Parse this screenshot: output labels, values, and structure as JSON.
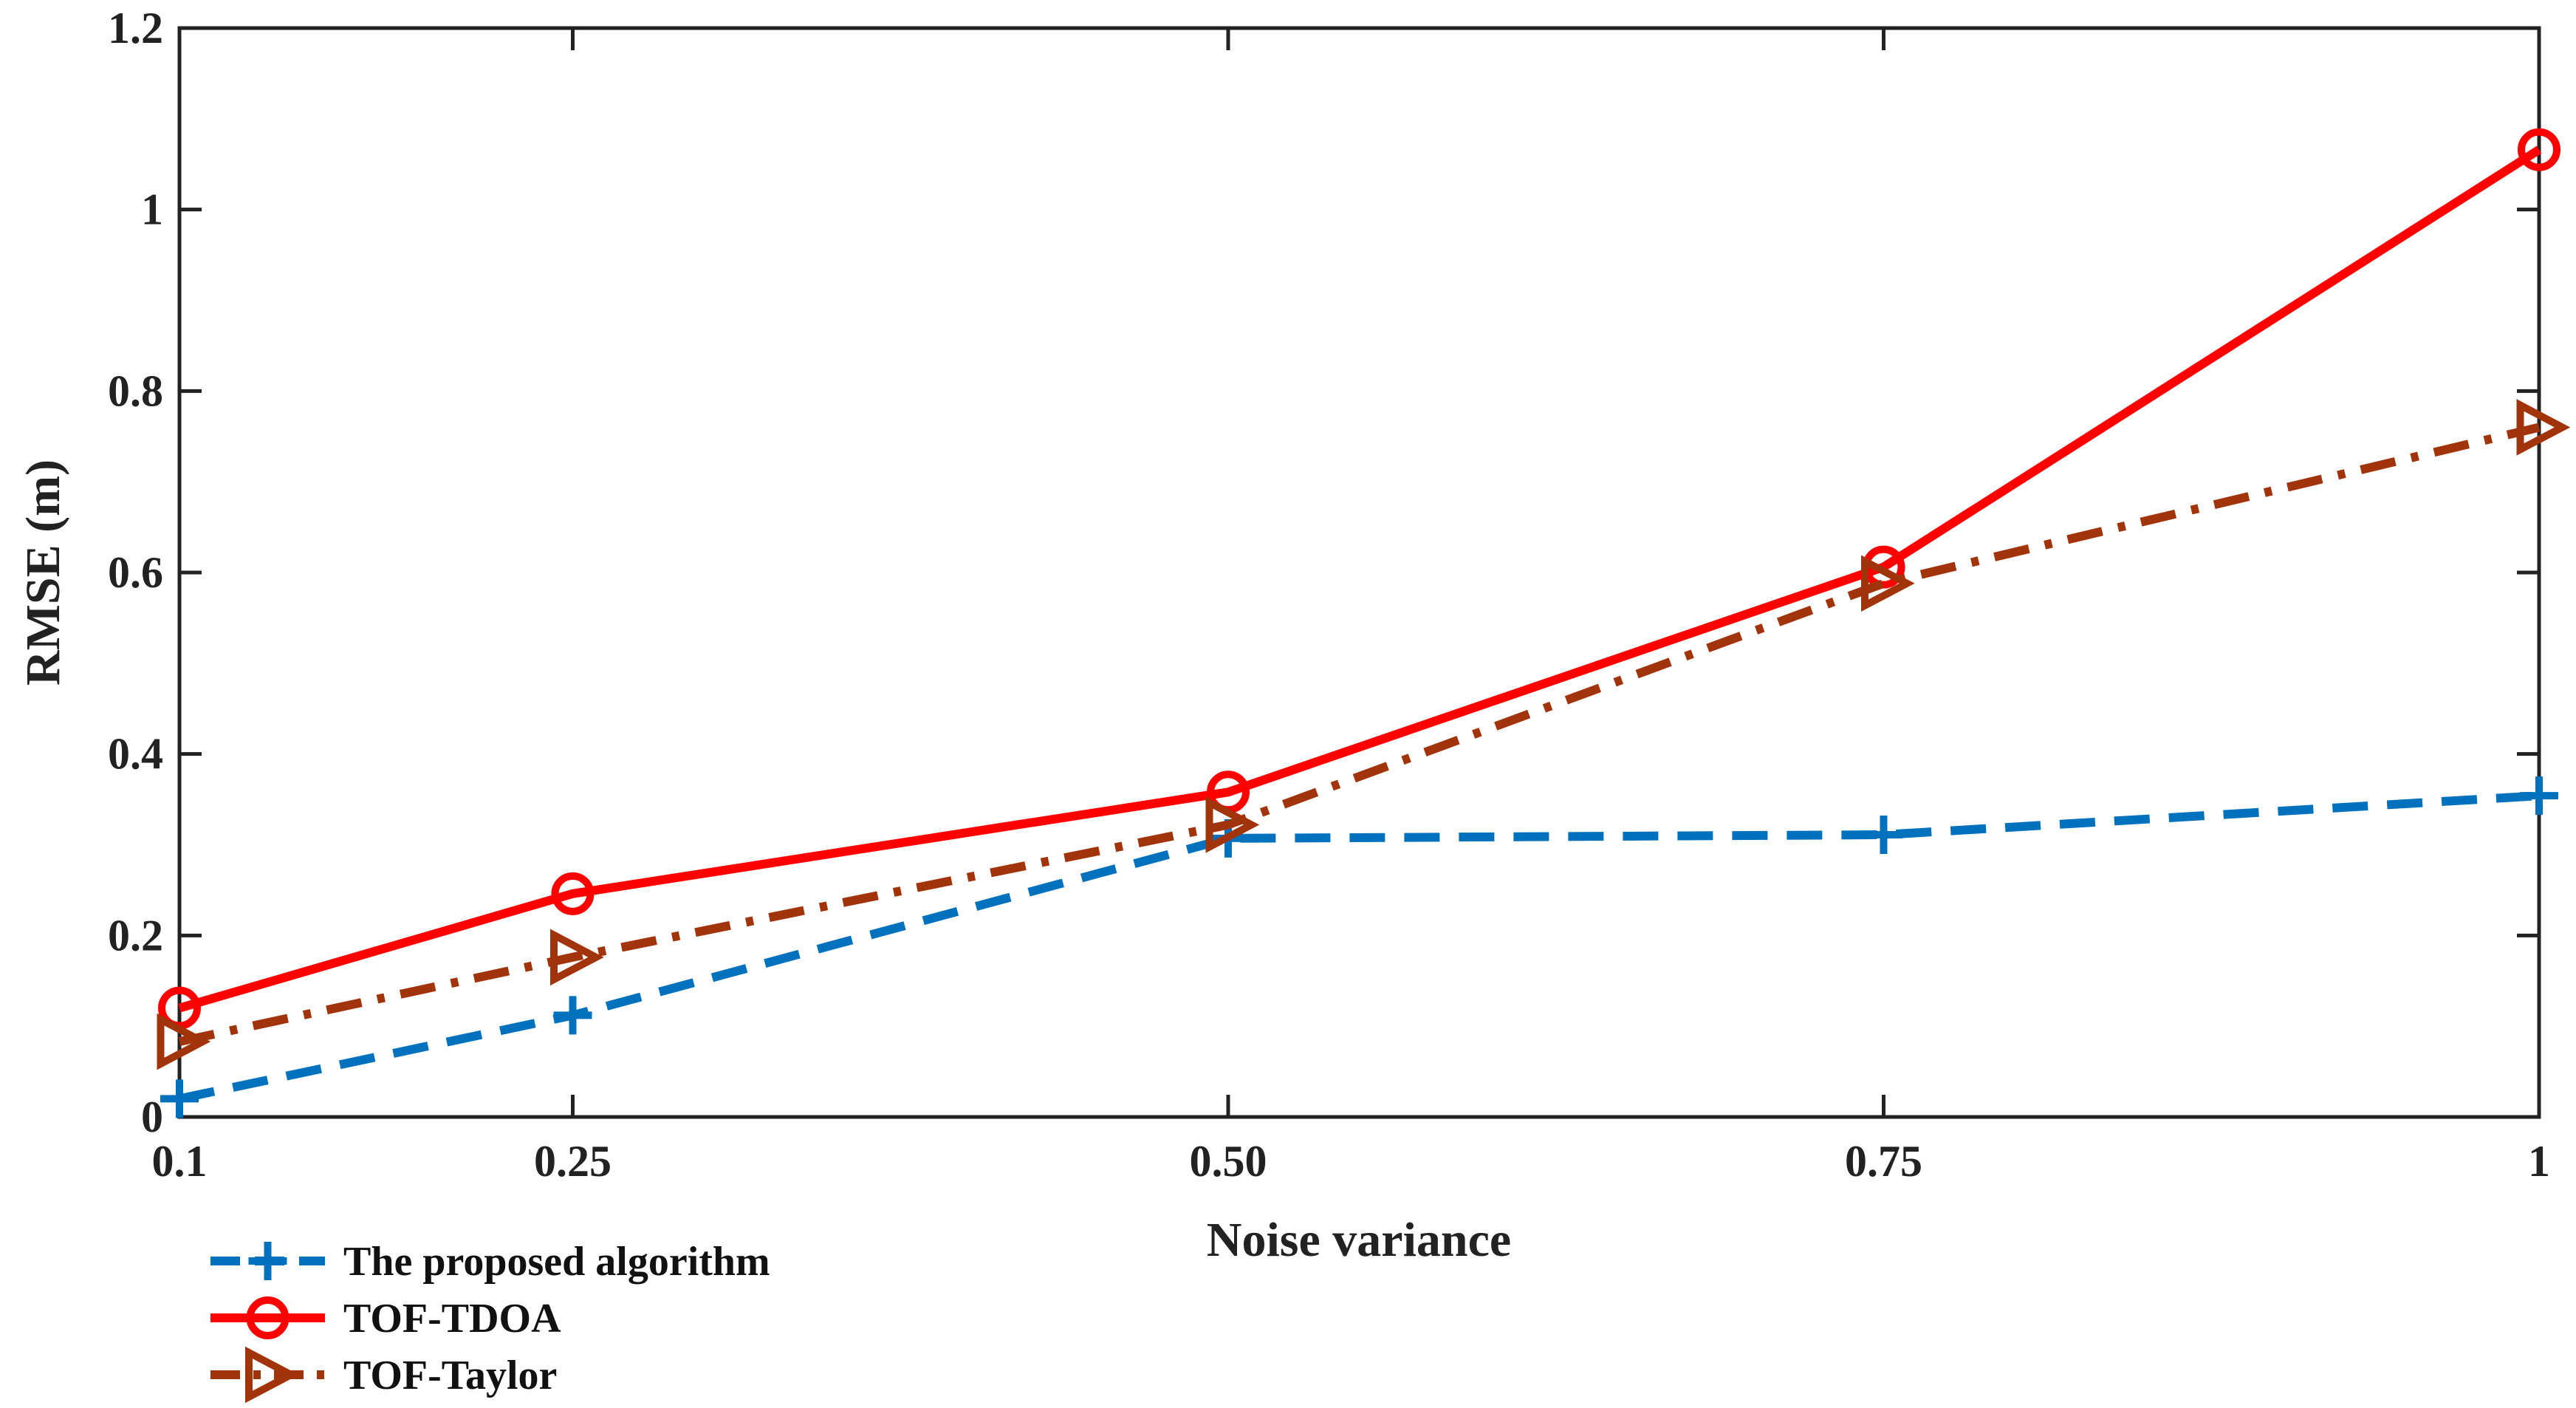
{
  "chart_data": {
    "type": "line",
    "title": "",
    "xlabel": "Noise variance",
    "ylabel": "RMSE (m)",
    "x": [
      0.1,
      0.25,
      0.5,
      0.75,
      1
    ],
    "x_tick_labels": [
      "0.1",
      "0.25",
      "0.50",
      "0.75",
      "1"
    ],
    "xlim": [
      0.1,
      1
    ],
    "ylim": [
      0,
      1.2
    ],
    "y_ticks": [
      0,
      0.2,
      0.4,
      0.6,
      0.8,
      1,
      1.2
    ],
    "y_tick_labels": [
      "0",
      "0.2",
      "0.4",
      "0.6",
      "0.8",
      "1",
      "1.2"
    ],
    "grid": false,
    "legend_position": "bottom-left, outside plot",
    "series": [
      {
        "name": "The proposed algorithm",
        "values": [
          0.02,
          0.112,
          0.307,
          0.311,
          0.354
        ],
        "color": "#0072BD",
        "line_style": "dashed",
        "marker": "plus"
      },
      {
        "name": "TOF-TDOA",
        "values": [
          0.12,
          0.246,
          0.358,
          0.606,
          1.066
        ],
        "color": "#FF0000",
        "line_style": "solid",
        "marker": "circle"
      },
      {
        "name": "TOF-Taylor",
        "values": [
          0.083,
          0.176,
          0.322,
          0.588,
          0.76
        ],
        "color": "#A2340C",
        "line_style": "dash-dot",
        "marker": "triangle-right"
      }
    ]
  }
}
